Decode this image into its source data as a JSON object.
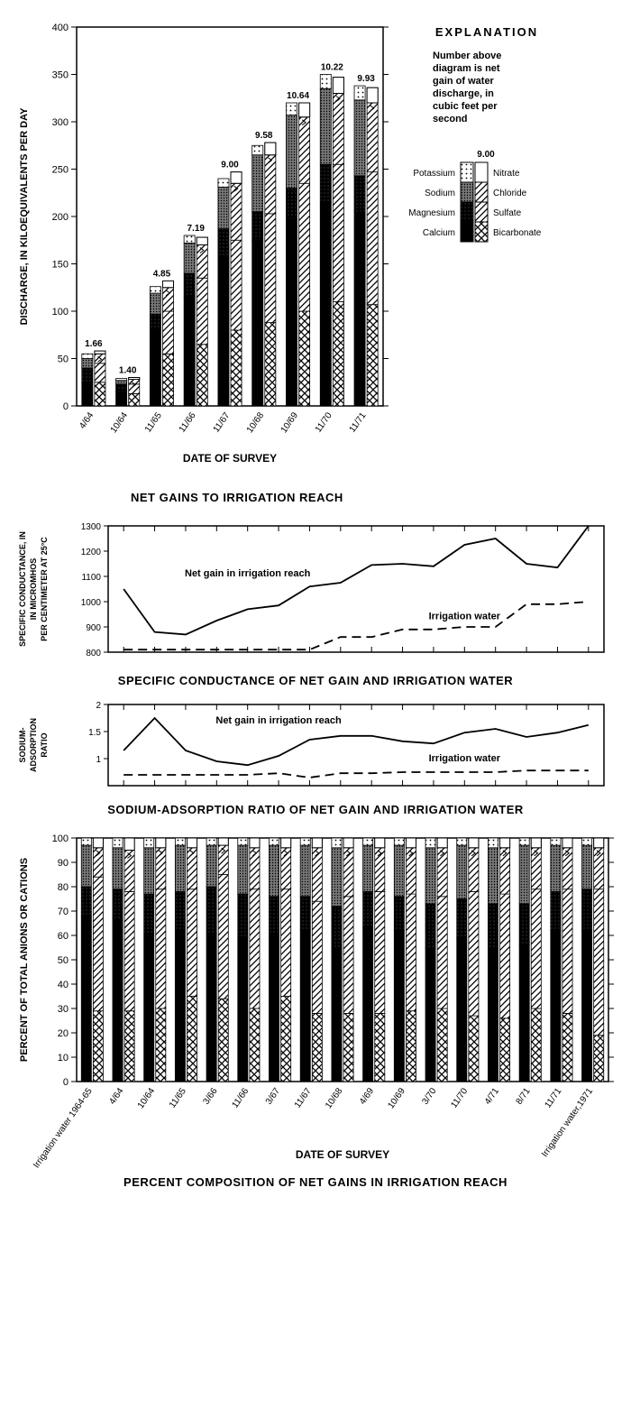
{
  "colors": {
    "ink": "#000000",
    "bg": "#ffffff",
    "dotFill": "#d0d0d0",
    "denseFill": "#707070"
  },
  "chart1": {
    "type": "stacked-bar-paired",
    "title": "NET GAINS TO IRRIGATION REACH",
    "ylabel": "DISCHARGE, IN KILOEQUIVALENTS PER DAY",
    "xlabel": "DATE OF SURVEY",
    "ylim": [
      0,
      400
    ],
    "ytick_step": 50,
    "categories": [
      "4/64",
      "10/64",
      "11/65",
      "11/66",
      "11/67",
      "10/68",
      "10/69",
      "11/70",
      "11/71"
    ],
    "netgain_labels": [
      "1.66",
      "1.40",
      "4.85",
      "7.19",
      "9.00",
      "9.58",
      "10.64",
      "10.22",
      "9.93"
    ],
    "cations": {
      "order": [
        "calcium",
        "magnesium",
        "sodium",
        "potassium"
      ],
      "data": [
        {
          "calcium": 25,
          "magnesium": 15,
          "sodium": 10,
          "potassium": 5
        },
        {
          "calcium": 15,
          "magnesium": 8,
          "sodium": 4,
          "potassium": 2
        },
        {
          "calcium": 80,
          "magnesium": 17,
          "sodium": 22,
          "potassium": 7
        },
        {
          "calcium": 115,
          "magnesium": 25,
          "sodium": 32,
          "potassium": 8
        },
        {
          "calcium": 157,
          "magnesium": 30,
          "sodium": 44,
          "potassium": 9
        },
        {
          "calcium": 175,
          "magnesium": 30,
          "sodium": 60,
          "potassium": 10
        },
        {
          "calcium": 198,
          "magnesium": 32,
          "sodium": 77,
          "potassium": 13
        },
        {
          "calcium": 215,
          "magnesium": 40,
          "sodium": 80,
          "potassium": 15
        },
        {
          "calcium": 205,
          "magnesium": 38,
          "sodium": 80,
          "potassium": 15
        }
      ]
    },
    "anions": {
      "order": [
        "bicarbonate",
        "sulfate",
        "chloride",
        "nitrate"
      ],
      "data": [
        {
          "bicarbonate": 25,
          "sulfate": 20,
          "chloride": 10,
          "nitrate": 3
        },
        {
          "bicarbonate": 13,
          "sulfate": 10,
          "chloride": 5,
          "nitrate": 2
        },
        {
          "bicarbonate": 55,
          "sulfate": 45,
          "chloride": 25,
          "nitrate": 7
        },
        {
          "bicarbonate": 65,
          "sulfate": 70,
          "chloride": 35,
          "nitrate": 8
        },
        {
          "bicarbonate": 80,
          "sulfate": 95,
          "chloride": 60,
          "nitrate": 12
        },
        {
          "bicarbonate": 88,
          "sulfate": 115,
          "chloride": 62,
          "nitrate": 13
        },
        {
          "bicarbonate": 100,
          "sulfate": 135,
          "chloride": 70,
          "nitrate": 15
        },
        {
          "bicarbonate": 110,
          "sulfate": 145,
          "chloride": 75,
          "nitrate": 17
        },
        {
          "bicarbonate": 107,
          "sulfate": 140,
          "chloride": 73,
          "nitrate": 16
        }
      ]
    },
    "explanation": {
      "heading": "EXPLANATION",
      "text": "Number above diagram is net gain of water discharge, in cubic feet per second",
      "label_value": "9.00",
      "cation_labels": [
        "Potassium",
        "Sodium",
        "Magnesium",
        "Calcium"
      ],
      "anion_labels": [
        "Nitrate",
        "Chloride",
        "Sulfate",
        "Bicarbonate"
      ]
    }
  },
  "chart2": {
    "type": "line",
    "title": "SPECIFIC CONDUCTANCE OF NET GAIN AND IRRIGATION WATER",
    "ylabel_lines": [
      "SPECIFIC CONDUCTANCE, IN",
      "IN MICROMHOS",
      "PER CENTIMETER AT 25°C"
    ],
    "ylim": [
      800,
      1300
    ],
    "ytick_step": 100,
    "x_points": [
      0,
      1,
      2,
      3,
      4,
      5,
      6,
      7,
      8,
      9,
      10,
      11,
      12,
      13,
      14,
      15
    ],
    "series": [
      {
        "name": "Net gain in irrigation reach",
        "style": "solid",
        "label_pos": [
          4,
          1100
        ],
        "y": [
          1050,
          880,
          870,
          925,
          970,
          985,
          1060,
          1075,
          1145,
          1150,
          1140,
          1225,
          1250,
          1150,
          1135,
          1300
        ]
      },
      {
        "name": "Irrigation water",
        "style": "dashed",
        "label_pos": [
          11,
          930
        ],
        "y": [
          810,
          810,
          810,
          810,
          810,
          810,
          810,
          860,
          860,
          890,
          890,
          900,
          900,
          990,
          990,
          1000
        ]
      }
    ]
  },
  "chart3": {
    "type": "line",
    "title": "SODIUM-ADSORPTION RATIO OF NET GAIN AND IRRIGATION WATER",
    "ylabel_lines": [
      "SODIUM-",
      "ADSORPTION",
      "RATIO"
    ],
    "ylim": [
      0.5,
      2.0
    ],
    "yticks": [
      1.0,
      1.5,
      2.0
    ],
    "x_points": [
      0,
      1,
      2,
      3,
      4,
      5,
      6,
      7,
      8,
      9,
      10,
      11,
      12,
      13,
      14,
      15
    ],
    "series": [
      {
        "name": "Net gain in irrigation reach",
        "style": "solid",
        "label_pos": [
          5,
          1.65
        ],
        "y": [
          1.15,
          1.75,
          1.15,
          0.95,
          0.88,
          1.05,
          1.35,
          1.42,
          1.42,
          1.32,
          1.28,
          1.48,
          1.55,
          1.4,
          1.48,
          1.62
        ]
      },
      {
        "name": "Irrigation water",
        "style": "dashed",
        "label_pos": [
          11,
          0.95
        ],
        "y": [
          0.7,
          0.7,
          0.7,
          0.7,
          0.7,
          0.73,
          0.65,
          0.73,
          0.73,
          0.75,
          0.75,
          0.75,
          0.75,
          0.78,
          0.78,
          0.78
        ]
      }
    ]
  },
  "chart4": {
    "type": "stacked-bar-paired-percent",
    "title": "PERCENT COMPOSITION OF NET GAINS IN IRRIGATION REACH",
    "ylabel": "PERCENT OF TOTAL ANIONS OR CATIONS",
    "xlabel": "DATE OF SURVEY",
    "ylim": [
      0,
      100
    ],
    "ytick_step": 10,
    "categories": [
      "Irrigation water 1964-65",
      "4/64",
      "10/64",
      "11/65",
      "3/66",
      "11/66",
      "3/67",
      "11/67",
      "10/68",
      "4/69",
      "10/69",
      "3/70",
      "11/70",
      "4/71",
      "8/71",
      "11/71",
      "Irrigation water,1971"
    ],
    "cations": {
      "order": [
        "calcium",
        "magnesium",
        "sodium",
        "potassium"
      ],
      "data": [
        {
          "calcium": 68,
          "magnesium": 12,
          "sodium": 17,
          "potassium": 3
        },
        {
          "calcium": 67,
          "magnesium": 12,
          "sodium": 17,
          "potassium": 4
        },
        {
          "calcium": 60,
          "magnesium": 17,
          "sodium": 19,
          "potassium": 4
        },
        {
          "calcium": 62,
          "magnesium": 16,
          "sodium": 19,
          "potassium": 3
        },
        {
          "calcium": 60,
          "magnesium": 20,
          "sodium": 17,
          "potassium": 3
        },
        {
          "calcium": 59,
          "magnesium": 18,
          "sodium": 20,
          "potassium": 3
        },
        {
          "calcium": 61,
          "magnesium": 15,
          "sodium": 21,
          "potassium": 3
        },
        {
          "calcium": 62,
          "magnesium": 14,
          "sodium": 21,
          "potassium": 3
        },
        {
          "calcium": 55,
          "magnesium": 17,
          "sodium": 24,
          "potassium": 4
        },
        {
          "calcium": 63,
          "magnesium": 15,
          "sodium": 19,
          "potassium": 3
        },
        {
          "calcium": 62,
          "magnesium": 14,
          "sodium": 21,
          "potassium": 3
        },
        {
          "calcium": 55,
          "magnesium": 18,
          "sodium": 23,
          "potassium": 4
        },
        {
          "calcium": 59,
          "magnesium": 16,
          "sodium": 22,
          "potassium": 3
        },
        {
          "calcium": 55,
          "magnesium": 18,
          "sodium": 23,
          "potassium": 4
        },
        {
          "calcium": 56,
          "magnesium": 17,
          "sodium": 24,
          "potassium": 3
        },
        {
          "calcium": 62,
          "magnesium": 16,
          "sodium": 19,
          "potassium": 3
        },
        {
          "calcium": 62,
          "magnesium": 17,
          "sodium": 18,
          "potassium": 3
        }
      ]
    },
    "anions": {
      "order": [
        "bicarbonate",
        "sulfate",
        "chloride",
        "nitrate"
      ],
      "data": [
        {
          "bicarbonate": 29,
          "sulfate": 55,
          "chloride": 12,
          "nitrate": 4
        },
        {
          "bicarbonate": 29,
          "sulfate": 49,
          "chloride": 17,
          "nitrate": 5
        },
        {
          "bicarbonate": 30,
          "sulfate": 49,
          "chloride": 17,
          "nitrate": 4
        },
        {
          "bicarbonate": 35,
          "sulfate": 44,
          "chloride": 17,
          "nitrate": 4
        },
        {
          "bicarbonate": 34,
          "sulfate": 51,
          "chloride": 12,
          "nitrate": 3
        },
        {
          "bicarbonate": 30,
          "sulfate": 49,
          "chloride": 17,
          "nitrate": 4
        },
        {
          "bicarbonate": 35,
          "sulfate": 44,
          "chloride": 17,
          "nitrate": 4
        },
        {
          "bicarbonate": 28,
          "sulfate": 46,
          "chloride": 22,
          "nitrate": 4
        },
        {
          "bicarbonate": 28,
          "sulfate": 48,
          "chloride": 20,
          "nitrate": 4
        },
        {
          "bicarbonate": 28,
          "sulfate": 50,
          "chloride": 18,
          "nitrate": 4
        },
        {
          "bicarbonate": 29,
          "sulfate": 48,
          "chloride": 19,
          "nitrate": 4
        },
        {
          "bicarbonate": 30,
          "sulfate": 46,
          "chloride": 20,
          "nitrate": 4
        },
        {
          "bicarbonate": 27,
          "sulfate": 51,
          "chloride": 18,
          "nitrate": 4
        },
        {
          "bicarbonate": 26,
          "sulfate": 51,
          "chloride": 19,
          "nitrate": 4
        },
        {
          "bicarbonate": 30,
          "sulfate": 49,
          "chloride": 17,
          "nitrate": 4
        },
        {
          "bicarbonate": 28,
          "sulfate": 51,
          "chloride": 17,
          "nitrate": 4
        },
        {
          "bicarbonate": 19,
          "sulfate": 60,
          "chloride": 17,
          "nitrate": 4
        }
      ]
    }
  }
}
